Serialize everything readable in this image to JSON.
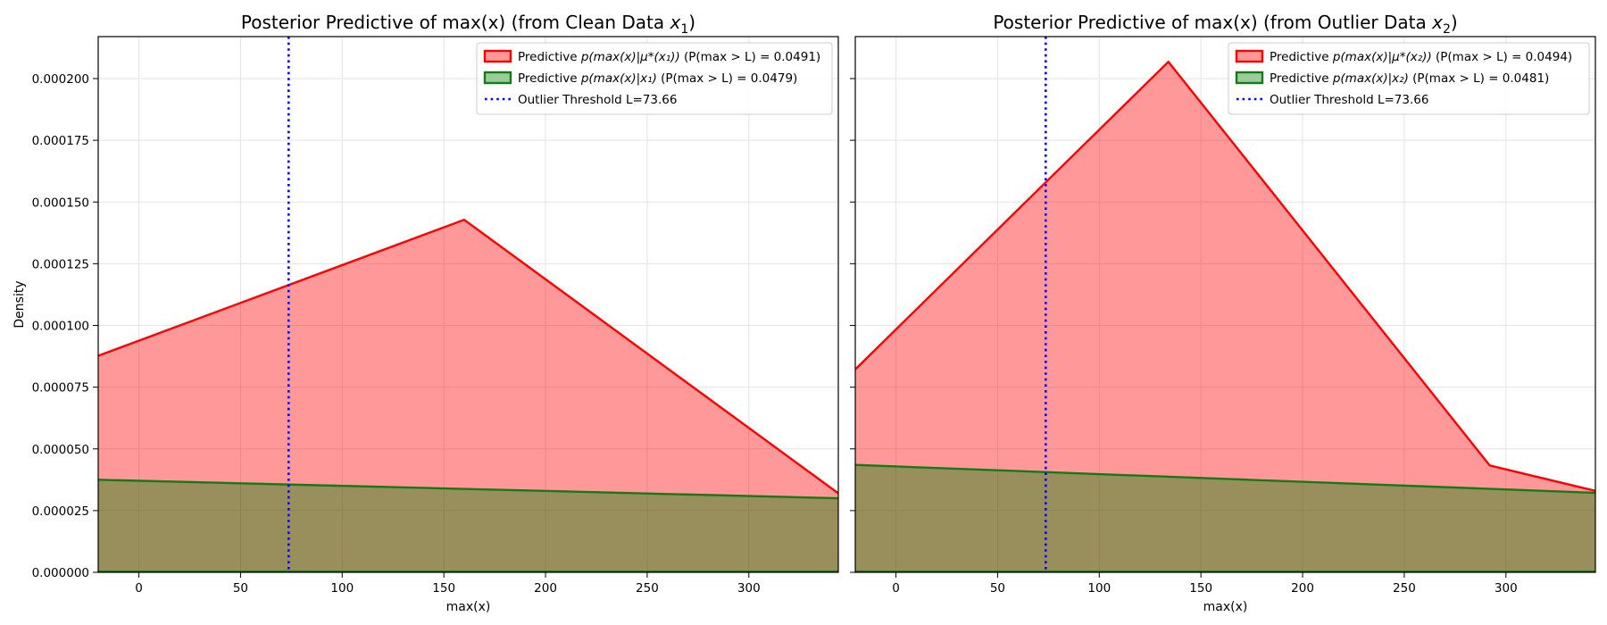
{
  "chart_data": [
    {
      "type": "area",
      "title": "Posterior Predictive of max(x) (from Clean Data x₁)",
      "title_parts": [
        "Posterior Predictive of max(x) (from Clean Data ",
        "x",
        "1",
        ")"
      ],
      "xlabel": "max(x)",
      "ylabel": "Density",
      "xlim": [
        -20,
        344
      ],
      "ylim": [
        0,
        0.000217
      ],
      "xticks": [
        0,
        50,
        100,
        150,
        200,
        250,
        300
      ],
      "yticks": [
        0.0,
        2.5e-05,
        5e-05,
        7.5e-05,
        0.0001,
        0.000125,
        0.00015,
        0.000175,
        0.0002
      ],
      "ytick_labels": [
        "0.000000",
        "0.000025",
        "0.000050",
        "0.000075",
        "0.000100",
        "0.000125",
        "0.000150",
        "0.000175",
        "0.000200"
      ],
      "grid": true,
      "legend_position": "top-right",
      "series": [
        {
          "name": "Predictive p(max(x)|μ*(x₁)) (P(max > L) = 0.0491)",
          "kind": "area",
          "color": "#ff0000",
          "fill": "#ff0000",
          "fill_opacity": 0.4,
          "x": [
            -20,
            160,
            344
          ],
          "y": [
            8.77e-05,
            0.0001428,
            3.2e-05
          ]
        },
        {
          "name": "Predictive p(max(x)|x₁) (P(max > L) = 0.0479)",
          "kind": "area",
          "color": "#157a15",
          "fill": "#008000",
          "fill_opacity": 0.4,
          "x": [
            -20,
            344
          ],
          "y": [
            3.75e-05,
            3e-05
          ]
        }
      ],
      "vline": {
        "name": "Outlier Threshold L=73.66",
        "x": 73.66,
        "color": "#0000ff"
      },
      "legend": [
        {
          "prefix": "Predictive ",
          "math": "p(max(x)|μ*(x₁))",
          "suffix": " (P(max > L) = 0.0491)",
          "type": "patch",
          "edge": "#ff0000",
          "face": "#ff9999"
        },
        {
          "prefix": "Predictive ",
          "math": "p(max(x)|x₁)",
          "suffix": " (P(max > L) = 0.0479)",
          "type": "patch",
          "edge": "#157a15",
          "face": "#99cc99"
        },
        {
          "prefix": "Outlier Threshold L=73.66",
          "math": "",
          "suffix": "",
          "type": "dotted",
          "edge": "#0000ff",
          "face": "none"
        }
      ]
    },
    {
      "type": "area",
      "title": "Posterior Predictive of max(x) (from Outlier Data x₂)",
      "title_parts": [
        "Posterior Predictive of max(x) (from Outlier Data ",
        "x",
        "2",
        ")"
      ],
      "xlabel": "max(x)",
      "ylabel": "",
      "xlim": [
        -20,
        344
      ],
      "ylim": [
        0,
        0.000217
      ],
      "xticks": [
        0,
        50,
        100,
        150,
        200,
        250,
        300
      ],
      "yticks": [
        0.0,
        2.5e-05,
        5e-05,
        7.5e-05,
        0.0001,
        0.000125,
        0.00015,
        0.000175,
        0.0002
      ],
      "ytick_labels": [],
      "grid": true,
      "legend_position": "top-right",
      "series": [
        {
          "name": "Predictive p(max(x)|μ*(x₂)) (P(max > L) = 0.0494)",
          "kind": "area",
          "color": "#ff0000",
          "fill": "#ff0000",
          "fill_opacity": 0.4,
          "x": [
            -20,
            134,
            292,
            344
          ],
          "y": [
            8.22e-05,
            0.0002068,
            4.33e-05,
            3.3e-05
          ]
        },
        {
          "name": "Predictive p(max(x)|x₂) (P(max > L) = 0.0481)",
          "kind": "area",
          "color": "#157a15",
          "fill": "#008000",
          "fill_opacity": 0.4,
          "x": [
            -20,
            344
          ],
          "y": [
            4.35e-05,
            3.22e-05
          ]
        }
      ],
      "vline": {
        "name": "Outlier Threshold L=73.66",
        "x": 73.66,
        "color": "#0000ff"
      },
      "legend": [
        {
          "prefix": "Predictive ",
          "math": "p(max(x)|μ*(x₂))",
          "suffix": " (P(max > L) = 0.0494)",
          "type": "patch",
          "edge": "#ff0000",
          "face": "#ff9999"
        },
        {
          "prefix": "Predictive ",
          "math": "p(max(x)|x₂)",
          "suffix": " (P(max > L) = 0.0481)",
          "type": "patch",
          "edge": "#157a15",
          "face": "#99cc99"
        },
        {
          "prefix": "Outlier Threshold L=73.66",
          "math": "",
          "suffix": "",
          "type": "dotted",
          "edge": "#0000ff",
          "face": "none"
        }
      ]
    }
  ]
}
